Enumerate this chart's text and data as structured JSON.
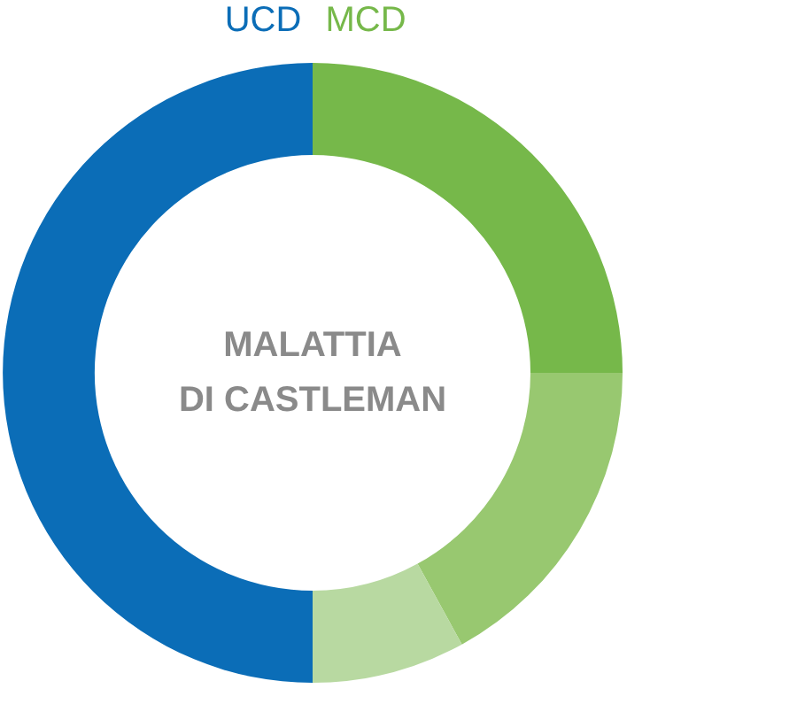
{
  "chart_data": {
    "type": "donut",
    "title": "MALATTIA\nDI CASTLEMAN",
    "categories": [
      "MCD",
      null,
      null,
      "UCD"
    ],
    "values": [
      25,
      17,
      8,
      50
    ],
    "colors": [
      "#76b84a",
      "#98c870",
      "#b8d9a1",
      "#0b6db7"
    ]
  }
}
